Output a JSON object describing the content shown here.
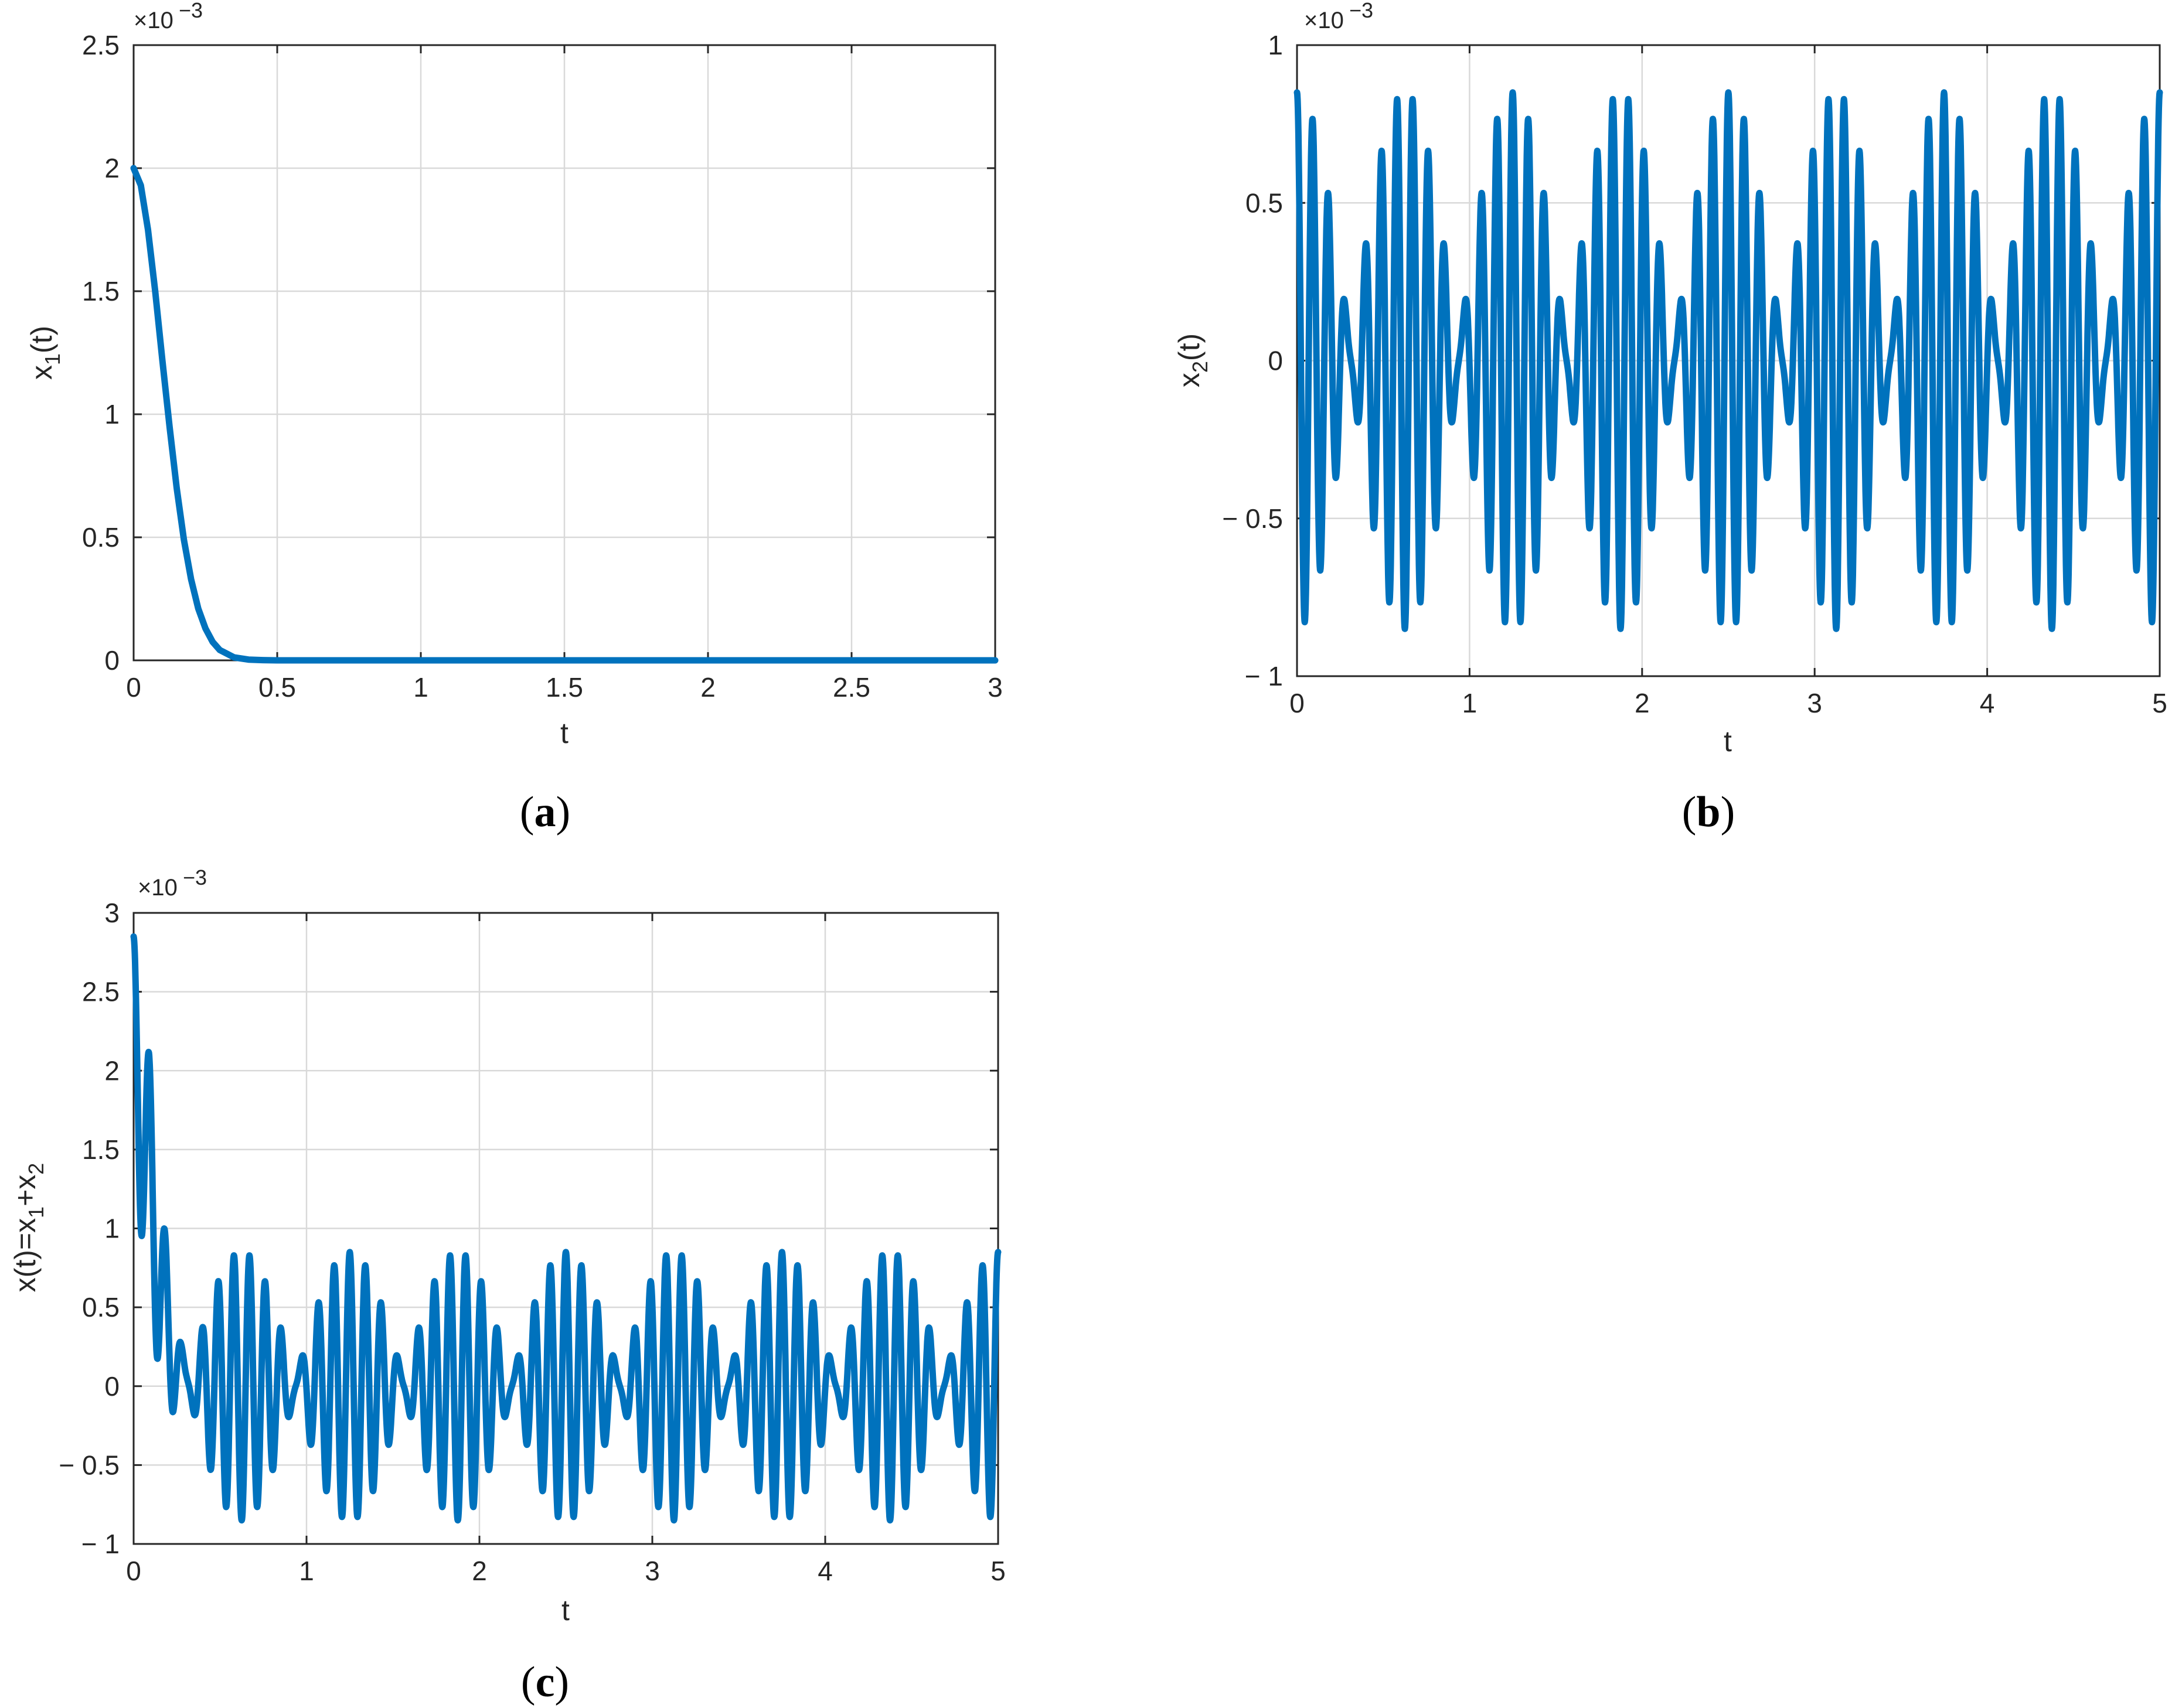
{
  "chart_data": [
    {
      "id": "a",
      "type": "line",
      "caption_letter": "a",
      "xlabel": "t",
      "ylabel_main": "x",
      "ylabel_sub": "1",
      "ylabel_tail": "(t)",
      "exponent_base": "×10",
      "exponent_power": "−3",
      "xlim": [
        0,
        3
      ],
      "ylim": [
        0,
        2.5
      ],
      "xticks": [
        0,
        0.5,
        1,
        1.5,
        2,
        2.5,
        3
      ],
      "xtick_labels": [
        "0",
        "0.5",
        "1",
        "1.5",
        "2",
        "2.5",
        "3"
      ],
      "yticks": [
        0,
        0.5,
        1,
        1.5,
        2,
        2.5
      ],
      "ytick_labels": [
        "0",
        "0.5",
        "1",
        "1.5",
        "2",
        "2.5"
      ],
      "grid": true,
      "series": [
        {
          "color": "#0072BD",
          "x": [
            0,
            0.025,
            0.05,
            0.075,
            0.1,
            0.125,
            0.15,
            0.175,
            0.2,
            0.225,
            0.25,
            0.275,
            0.3,
            0.35,
            0.4,
            0.45,
            0.5,
            1,
            1.5,
            2,
            2.5,
            3
          ],
          "y": [
            2.0,
            1.93,
            1.75,
            1.5,
            1.22,
            0.95,
            0.7,
            0.49,
            0.33,
            0.21,
            0.13,
            0.075,
            0.042,
            0.012,
            0.003,
            0.001,
            0,
            0,
            0,
            0,
            0,
            0
          ]
        }
      ]
    },
    {
      "id": "b",
      "type": "line",
      "caption_letter": "b",
      "xlabel": "t",
      "ylabel_main": "x",
      "ylabel_sub": "2",
      "ylabel_tail": "(t)",
      "exponent_base": "×10",
      "exponent_power": "−3",
      "xlim": [
        0,
        5
      ],
      "ylim": [
        -1,
        1
      ],
      "xticks": [
        0,
        1,
        2,
        3,
        4,
        5
      ],
      "xtick_labels": [
        "0",
        "1",
        "2",
        "3",
        "4",
        "5"
      ],
      "yticks": [
        -1,
        -0.5,
        0,
        0.5,
        1
      ],
      "ytick_labels": [
        "− 1",
        "− 0.5",
        "0",
        "0.5",
        "1"
      ],
      "grid": true,
      "series": [
        {
          "color": "#0072BD",
          "signal": {
            "form": "a1*cos(2*pi*f1*t) + a2*cos(2*pi*f2*t)",
            "a1": 0.48,
            "f1": 10.4,
            "a2": 0.37,
            "f2": 12.0
          },
          "t_range": [
            0,
            5
          ]
        }
      ]
    },
    {
      "id": "c",
      "type": "line",
      "caption_letter": "c",
      "xlabel": "t",
      "ylabel_main": "x(t)=x",
      "ylabel_sub": "1",
      "ylabel_mid": "+x",
      "ylabel_sub2": "2",
      "exponent_base": "×10",
      "exponent_power": "−3",
      "xlim": [
        0,
        5
      ],
      "ylim": [
        -1,
        3
      ],
      "xticks": [
        0,
        1,
        2,
        3,
        4,
        5
      ],
      "xtick_labels": [
        "0",
        "1",
        "2",
        "3",
        "4",
        "5"
      ],
      "yticks": [
        -1,
        -0.5,
        0,
        0.5,
        1,
        1.5,
        2,
        2.5,
        3
      ],
      "ytick_labels": [
        "− 1",
        "− 0.5",
        "0",
        "0.5",
        "1",
        "1.5",
        "2",
        "2.5",
        "3"
      ],
      "grid": true,
      "series": [
        {
          "color": "#0072BD",
          "composition": "sum of panel (a) curve and panel (b) curve",
          "t_range": [
            0,
            5
          ]
        }
      ]
    }
  ]
}
